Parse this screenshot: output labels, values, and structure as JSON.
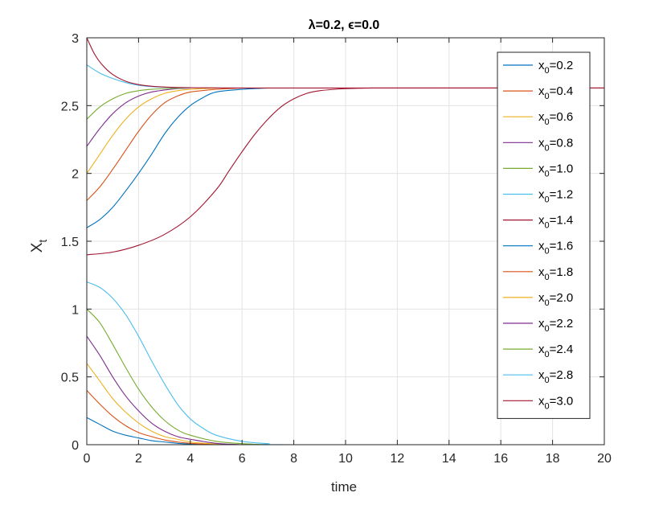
{
  "chart_data": {
    "type": "line",
    "title": "λ=0.2, ϵ=0.0",
    "xlabel": "time",
    "ylabel": "X_t",
    "xlim": [
      0,
      20
    ],
    "ylim": [
      0,
      3
    ],
    "xticks": [
      0,
      2,
      4,
      6,
      8,
      10,
      12,
      14,
      16,
      18,
      20
    ],
    "yticks": [
      0,
      0.5,
      1,
      1.5,
      2,
      2.5,
      3
    ],
    "xtick_labels": [
      "0",
      "2",
      "4",
      "6",
      "8",
      "10",
      "12",
      "14",
      "16",
      "18",
      "20"
    ],
    "ytick_labels": [
      "0",
      "0.5",
      "1",
      "1.5",
      "2",
      "2.5",
      "3"
    ],
    "grid": true,
    "legend_position": "top-right",
    "upper_equilibrium": 2.63,
    "series": [
      {
        "name": "x_0=0.2",
        "color": "#0072BD",
        "x": [
          0,
          0.5,
          1,
          1.5,
          2,
          2.5,
          3,
          3.5,
          4,
          5,
          6
        ],
        "y": [
          0.2,
          0.15,
          0.1,
          0.07,
          0.05,
          0.03,
          0.02,
          0.01,
          0.005,
          0.001,
          0.0
        ]
      },
      {
        "name": "x_0=0.4",
        "color": "#D95319",
        "x": [
          0,
          0.5,
          1,
          1.5,
          2,
          2.5,
          3,
          3.5,
          4,
          5,
          6
        ],
        "y": [
          0.4,
          0.3,
          0.21,
          0.14,
          0.09,
          0.06,
          0.035,
          0.02,
          0.01,
          0.002,
          0.0
        ]
      },
      {
        "name": "x_0=0.6",
        "color": "#EDB120",
        "x": [
          0,
          0.5,
          1,
          1.5,
          2,
          2.5,
          3,
          3.5,
          4,
          5,
          6
        ],
        "y": [
          0.6,
          0.47,
          0.34,
          0.24,
          0.16,
          0.1,
          0.06,
          0.04,
          0.02,
          0.005,
          0.0
        ]
      },
      {
        "name": "x_0=0.8",
        "color": "#7E2F8E",
        "x": [
          0,
          0.5,
          1,
          1.5,
          2,
          2.5,
          3,
          3.5,
          4,
          5,
          6
        ],
        "y": [
          0.8,
          0.66,
          0.5,
          0.36,
          0.25,
          0.16,
          0.1,
          0.06,
          0.04,
          0.01,
          0.0
        ]
      },
      {
        "name": "x_0=1.0",
        "color": "#77AC30",
        "x": [
          0,
          0.5,
          1,
          1.5,
          2,
          2.5,
          3,
          3.5,
          4,
          5,
          6,
          7
        ],
        "y": [
          1.0,
          0.9,
          0.74,
          0.57,
          0.41,
          0.28,
          0.18,
          0.11,
          0.07,
          0.025,
          0.008,
          0.0
        ]
      },
      {
        "name": "x_0=1.2",
        "color": "#4DBEEE",
        "x": [
          0,
          0.5,
          1,
          1.5,
          2,
          2.5,
          3,
          3.5,
          4,
          4.5,
          5,
          6,
          7,
          8,
          20
        ],
        "y": [
          1.2,
          1.16,
          1.08,
          0.96,
          0.8,
          0.62,
          0.45,
          0.3,
          0.19,
          0.12,
          0.07,
          0.025,
          0.008,
          0.0,
          0.0
        ]
      },
      {
        "name": "x_0=1.4",
        "color": "#A2142F",
        "x": [
          0,
          1,
          2,
          3,
          4,
          5,
          5.5,
          6,
          6.5,
          7,
          7.5,
          8,
          8.5,
          9,
          10,
          11
        ],
        "y": [
          1.4,
          1.42,
          1.47,
          1.55,
          1.68,
          1.88,
          2.02,
          2.16,
          2.29,
          2.4,
          2.49,
          2.55,
          2.59,
          2.61,
          2.625,
          2.63
        ]
      },
      {
        "name": "x_0=1.6",
        "color": "#0072BD",
        "x": [
          0,
          0.5,
          1,
          1.5,
          2,
          2.5,
          3,
          3.5,
          4,
          4.5,
          5,
          6,
          7
        ],
        "y": [
          1.6,
          1.66,
          1.75,
          1.87,
          2.0,
          2.14,
          2.29,
          2.41,
          2.5,
          2.56,
          2.6,
          2.62,
          2.63
        ]
      },
      {
        "name": "x_0=1.8",
        "color": "#D95319",
        "x": [
          0,
          0.5,
          1,
          1.5,
          2,
          2.5,
          3,
          3.5,
          4,
          5,
          6
        ],
        "y": [
          1.8,
          1.9,
          2.03,
          2.17,
          2.31,
          2.43,
          2.52,
          2.57,
          2.6,
          2.62,
          2.63
        ]
      },
      {
        "name": "x_0=2.0",
        "color": "#EDB120",
        "x": [
          0,
          0.5,
          1,
          1.5,
          2,
          2.5,
          3,
          3.5,
          4,
          5
        ],
        "y": [
          2.0,
          2.14,
          2.28,
          2.4,
          2.49,
          2.55,
          2.59,
          2.61,
          2.62,
          2.63
        ]
      },
      {
        "name": "x_0=2.2",
        "color": "#7E2F8E",
        "x": [
          0,
          0.5,
          1,
          1.5,
          2,
          2.5,
          3,
          3.5,
          4
        ],
        "y": [
          2.2,
          2.33,
          2.44,
          2.52,
          2.57,
          2.6,
          2.615,
          2.625,
          2.63
        ]
      },
      {
        "name": "x_0=2.4",
        "color": "#77AC30",
        "x": [
          0,
          0.5,
          1,
          1.5,
          2,
          2.5,
          3,
          4
        ],
        "y": [
          2.4,
          2.49,
          2.55,
          2.59,
          2.61,
          2.62,
          2.625,
          2.63
        ]
      },
      {
        "name": "x_0=2.8",
        "color": "#4DBEEE",
        "x": [
          0,
          0.5,
          1,
          1.5,
          2,
          2.5,
          3,
          4
        ],
        "y": [
          2.8,
          2.74,
          2.7,
          2.67,
          2.65,
          2.64,
          2.635,
          2.63
        ]
      },
      {
        "name": "x_0=3.0",
        "color": "#A2142F",
        "x": [
          0,
          0.3,
          0.6,
          1,
          1.5,
          2,
          2.5,
          3,
          4,
          6,
          11,
          20
        ],
        "y": [
          3.0,
          2.88,
          2.8,
          2.73,
          2.68,
          2.655,
          2.643,
          2.637,
          2.632,
          2.63,
          2.63,
          2.63
        ]
      }
    ]
  }
}
